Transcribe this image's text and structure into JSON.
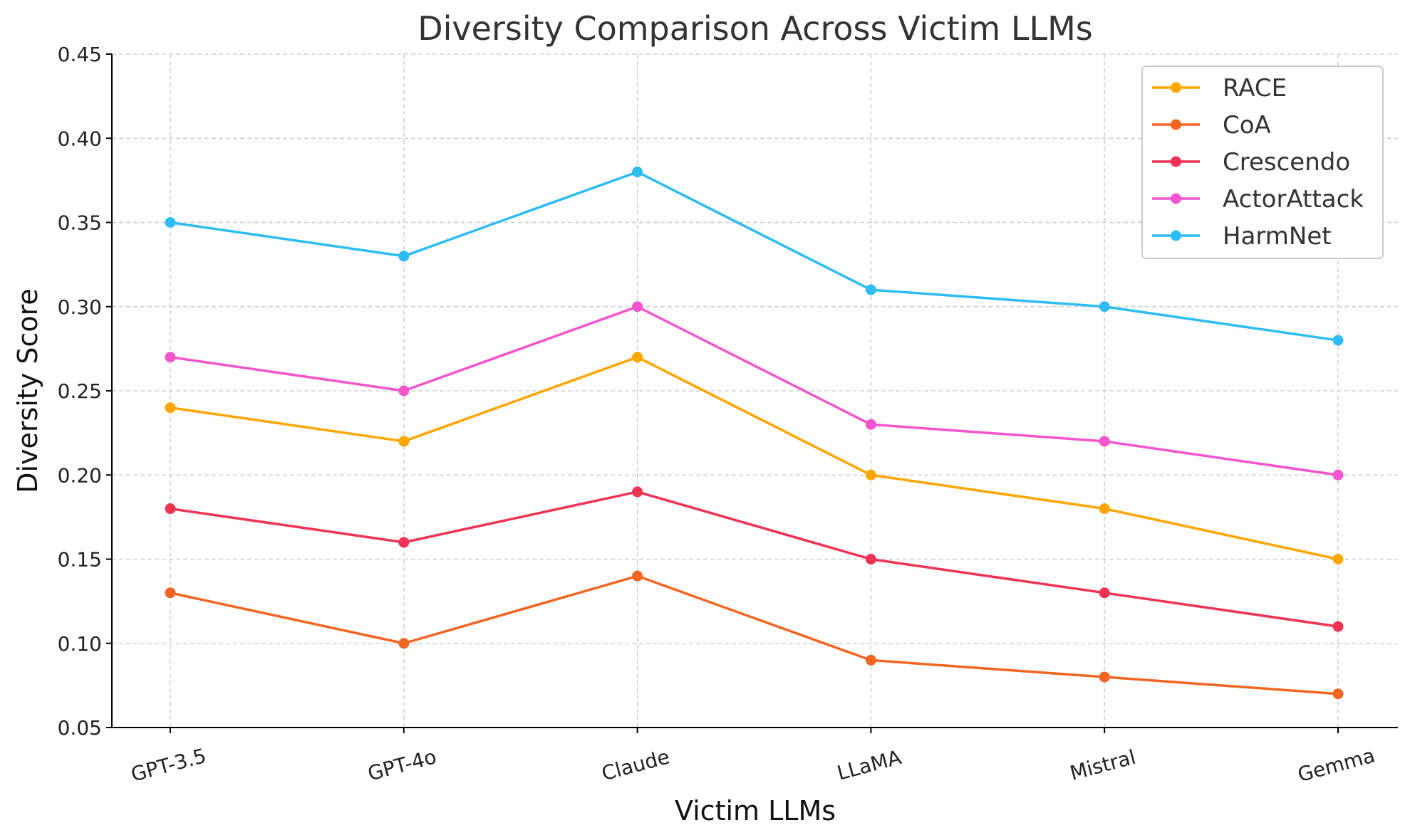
{
  "chart_data": {
    "type": "line",
    "title": "Diversity Comparison Across Victim LLMs",
    "xlabel": "Victim LLMs",
    "ylabel": "Diversity Score",
    "ylim": [
      0.05,
      0.45
    ],
    "yticks": [
      "0.05",
      "0.10",
      "0.15",
      "0.20",
      "0.25",
      "0.30",
      "0.35",
      "0.40",
      "0.45"
    ],
    "grid": true,
    "legend_position": "top-right",
    "categories": [
      "GPT-3.5",
      "GPT-4o",
      "Claude",
      "LLaMA",
      "Mistral",
      "Gemma"
    ],
    "series": [
      {
        "name": "RACE",
        "color": "#ffa500",
        "values": [
          0.24,
          0.22,
          0.27,
          0.2,
          0.18,
          0.15
        ]
      },
      {
        "name": "CoA",
        "color": "#f26522",
        "values": [
          0.13,
          0.1,
          0.14,
          0.09,
          0.08,
          0.07
        ]
      },
      {
        "name": "Crescendo",
        "color": "#ee3355",
        "values": [
          0.18,
          0.16,
          0.19,
          0.15,
          0.13,
          0.11
        ]
      },
      {
        "name": "ActorAttack",
        "color": "#f355cc",
        "values": [
          0.27,
          0.25,
          0.3,
          0.23,
          0.22,
          0.2
        ]
      },
      {
        "name": "HarmNet",
        "color": "#2ebcf5",
        "values": [
          0.35,
          0.33,
          0.38,
          0.31,
          0.3,
          0.28
        ]
      }
    ]
  }
}
